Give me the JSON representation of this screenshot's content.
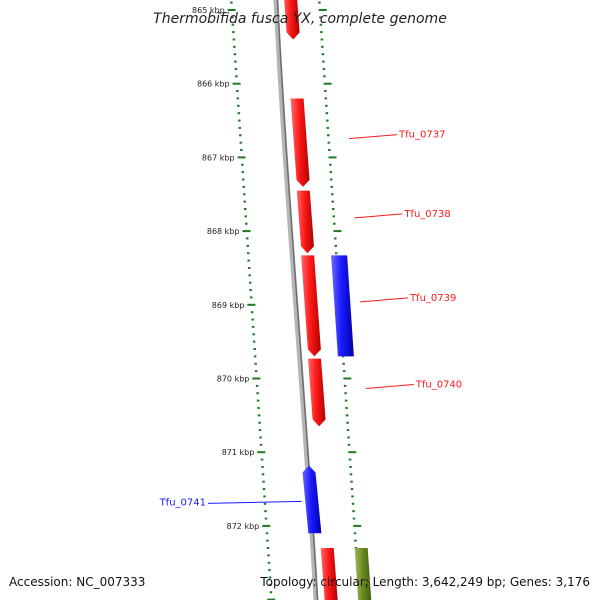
{
  "title": "Thermobifida fusca YX, complete genome",
  "accession": "Accession: NC_007333",
  "summary": "Topology: circular; Length: 3,642,249 bp; Genes: 3,176",
  "colors": {
    "backbone": "#8c8c8c",
    "ticks": "#1e7a1e",
    "forward_gene": "#ff1a1a",
    "reverse_gene": "#1a1aff",
    "other_feature": "#6b8e23"
  },
  "scale": {
    "labels": [
      "865 kbp",
      "866 kbp",
      "867 kbp",
      "868 kbp",
      "869 kbp",
      "870 kbp",
      "871 kbp",
      "872 kbp"
    ]
  },
  "genes": [
    {
      "name": "",
      "start_kbp": 864.6,
      "end_kbp": 865.4,
      "strand": "+",
      "track": "forward"
    },
    {
      "name": "Tfu_0737",
      "start_kbp": 866.2,
      "end_kbp": 867.4,
      "strand": "+",
      "track": "forward"
    },
    {
      "name": "Tfu_0738",
      "start_kbp": 867.45,
      "end_kbp": 868.3,
      "strand": "+",
      "track": "forward"
    },
    {
      "name": "Tfu_0739",
      "start_kbp": 868.33,
      "end_kbp": 869.7,
      "strand": "+",
      "track": "forward"
    },
    {
      "name": "",
      "start_kbp": 868.33,
      "end_kbp": 869.7,
      "strand": "-",
      "track": "paired"
    },
    {
      "name": "Tfu_0740",
      "start_kbp": 869.73,
      "end_kbp": 870.65,
      "strand": "+",
      "track": "forward"
    },
    {
      "name": "Tfu_0741",
      "start_kbp": 871.18,
      "end_kbp": 872.1,
      "strand": "-",
      "track": "reverse"
    },
    {
      "name": "",
      "start_kbp": 872.3,
      "end_kbp": 873.1,
      "strand": "+",
      "track": "forward"
    },
    {
      "name": "",
      "start_kbp": 872.3,
      "end_kbp": 873.1,
      "strand": "+",
      "track": "other"
    }
  ]
}
